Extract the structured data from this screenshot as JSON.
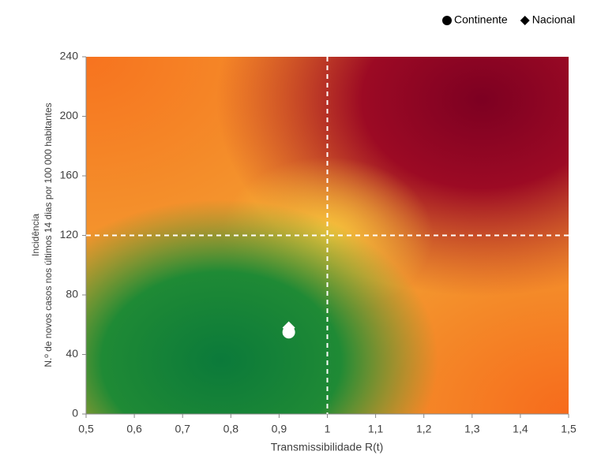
{
  "chart_data": {
    "type": "scatter",
    "xlabel": "Transmissibilidade R(t)",
    "ylabel": [
      "Incidência",
      "N.º de novos casos nos últimos 14 dias por 100 000 habitantes"
    ],
    "xlim": [
      0.5,
      1.5
    ],
    "ylim": [
      0,
      240
    ],
    "xticks": [
      {
        "value": 0.5,
        "label": "0,5"
      },
      {
        "value": 0.6,
        "label": "0,6"
      },
      {
        "value": 0.7,
        "label": "0,7"
      },
      {
        "value": 0.8,
        "label": "0,8"
      },
      {
        "value": 0.9,
        "label": "0,9"
      },
      1,
      {
        "value": 1.1,
        "label": "1,1"
      },
      {
        "value": 1.2,
        "label": "1,2"
      },
      {
        "value": 1.3,
        "label": "1,3"
      },
      {
        "value": 1.4,
        "label": "1,4"
      },
      {
        "value": 1.5,
        "label": "1,5"
      }
    ],
    "yticks": [
      0,
      40,
      80,
      120,
      160,
      200,
      240
    ],
    "reference_x": 1,
    "reference_y": 120,
    "legend": "top-right",
    "series": [
      {
        "name": "Continente",
        "marker": "circle",
        "color": "#ffffff",
        "x": [
          0.92
        ],
        "values": [
          55
        ]
      },
      {
        "name": "Nacional",
        "marker": "diamond",
        "color": "#ffffff",
        "x": [
          0.92
        ],
        "values": [
          58
        ]
      }
    ]
  }
}
